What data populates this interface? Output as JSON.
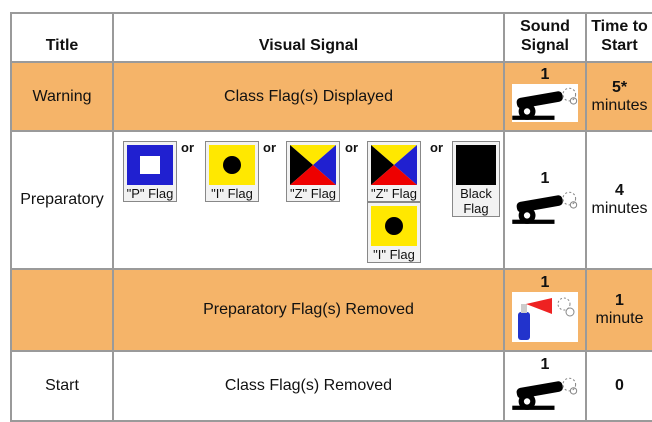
{
  "header": {
    "title": "Title",
    "visual": "Visual Signal",
    "sound": "Sound Signal",
    "time": "Time to Start"
  },
  "rows": [
    {
      "title": "Warning",
      "visual": "Class Flag(s) Displayed",
      "sound": 1,
      "time": "5*",
      "unit": "minutes"
    },
    {
      "title": "Preparatory",
      "flags": [
        "\"P\" Flag",
        "\"I\" Flag",
        "\"Z\" Flag",
        "\"Z\" Flag",
        "\"I\" Flag",
        "Black Flag"
      ],
      "or": [
        "or",
        "or",
        "or",
        "or"
      ],
      "sound": 1,
      "time": 4,
      "unit": "minutes"
    },
    {
      "visual": "Preparatory Flag(s) Removed",
      "sound": 1,
      "time": 1,
      "unit": "minute"
    },
    {
      "title": "Start",
      "visual": "Class Flag(s) Removed",
      "sound": 1,
      "time": 0
    }
  ]
}
